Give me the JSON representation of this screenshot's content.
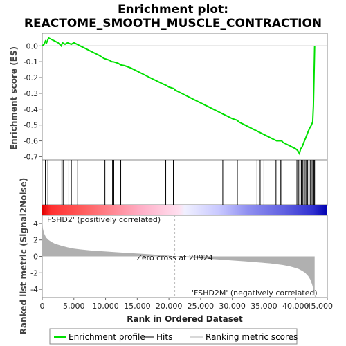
{
  "chart_data": {
    "type": "line",
    "title_line1": "Enrichment plot:",
    "title_line2": "REACTOME_SMOOTH_MUSCLE_CONTRACTION",
    "es_ylabel": "Enrichment score (ES)",
    "metric_ylabel": "Ranked list metric (Signal2Noise)",
    "xlabel": "Rank in Ordered Dataset",
    "xlim": [
      0,
      45000
    ],
    "x_ticks": [
      0,
      5000,
      10000,
      15000,
      20000,
      25000,
      30000,
      35000,
      40000,
      45000
    ],
    "x_tick_labels": [
      "0",
      "5,000",
      "10,000",
      "15,000",
      "20,000",
      "25,000",
      "30,000",
      "35,000",
      "40,000",
      "45,000"
    ],
    "es_ylim": [
      -0.72,
      0.08
    ],
    "es_ticks": [
      0.0,
      -0.1,
      -0.2,
      -0.3,
      -0.4,
      -0.5,
      -0.6,
      -0.7
    ],
    "es_tick_labels": [
      "0.0",
      "-0.1",
      "-0.2",
      "-0.3",
      "-0.4",
      "-0.5",
      "-0.6",
      "-0.7"
    ],
    "metric_ylim": [
      -5,
      5
    ],
    "metric_ticks": [
      4,
      2,
      0,
      -2,
      -4
    ],
    "metric_tick_labels": [
      "4",
      "2",
      "0",
      "-2",
      "-4"
    ],
    "n_genes": 43000,
    "zero_cross": 20924,
    "zero_cross_label": "Zero cross at 20924",
    "pos_label": "'FSHD2' (positively correlated)",
    "neg_label": "'FSHD2M' (negatively correlated)",
    "enrichment_profile": {
      "name": "Enrichment profile",
      "x": [
        0,
        300,
        500,
        700,
        1000,
        1500,
        2000,
        2500,
        3000,
        3200,
        3400,
        3600,
        4000,
        4300,
        4600,
        5000,
        5500,
        6000,
        7000,
        8000,
        9000,
        9800,
        10200,
        10600,
        11000,
        11200,
        11600,
        12000,
        12400,
        13000,
        14000,
        15000,
        16000,
        17000,
        18000,
        19000,
        19600,
        20000,
        20800,
        21000,
        22000,
        23000,
        24000,
        25000,
        26000,
        27000,
        28000,
        28500,
        29000,
        30000,
        30800,
        31000,
        32000,
        33000,
        34000,
        34500,
        35000,
        35500,
        36000,
        36500,
        37000,
        37500,
        37800,
        38000,
        38500,
        39000,
        39500,
        40000,
        40300,
        40600,
        40800,
        41000,
        41200,
        41400,
        41600,
        41800,
        42000,
        42200,
        42500,
        42700,
        42800,
        42900,
        43000
      ],
      "y": [
        0.0,
        0.01,
        0.03,
        0.02,
        0.05,
        0.04,
        0.03,
        0.02,
        0.0,
        0.02,
        0.015,
        0.01,
        0.02,
        0.015,
        0.01,
        0.02,
        0.01,
        0.0,
        -0.02,
        -0.04,
        -0.06,
        -0.08,
        -0.085,
        -0.09,
        -0.1,
        -0.1,
        -0.105,
        -0.11,
        -0.12,
        -0.125,
        -0.14,
        -0.16,
        -0.18,
        -0.2,
        -0.22,
        -0.24,
        -0.25,
        -0.26,
        -0.27,
        -0.28,
        -0.3,
        -0.32,
        -0.34,
        -0.36,
        -0.38,
        -0.4,
        -0.42,
        -0.43,
        -0.44,
        -0.46,
        -0.47,
        -0.48,
        -0.5,
        -0.52,
        -0.54,
        -0.55,
        -0.56,
        -0.57,
        -0.58,
        -0.59,
        -0.6,
        -0.6,
        -0.6,
        -0.61,
        -0.62,
        -0.63,
        -0.64,
        -0.65,
        -0.66,
        -0.68,
        -0.65,
        -0.64,
        -0.62,
        -0.6,
        -0.58,
        -0.56,
        -0.54,
        -0.52,
        -0.5,
        -0.48,
        -0.38,
        -0.2,
        0.0
      ]
    },
    "hits": {
      "name": "Hits",
      "x": [
        500,
        900,
        3100,
        3300,
        4200,
        4600,
        5600,
        9900,
        11100,
        11300,
        12400,
        19500,
        20700,
        28500,
        30800,
        33900,
        34400,
        35000,
        36900,
        37600,
        37800,
        40200,
        40500,
        40700,
        40900,
        41100,
        41300,
        41500,
        41700,
        41900,
        42100,
        42300,
        42600,
        42800,
        42900,
        43000
      ]
    },
    "ranking_metric": {
      "name": "Ranking metric scores",
      "x": [
        0,
        100,
        300,
        600,
        1000,
        1500,
        2000,
        3000,
        4000,
        5000,
        6000,
        8000,
        10000,
        12000,
        14000,
        16000,
        18000,
        20000,
        20924,
        22000,
        24000,
        26000,
        28000,
        30000,
        32000,
        34000,
        36000,
        38000,
        39000,
        40000,
        40500,
        41000,
        41500,
        42000,
        42300,
        42600,
        42800,
        43000
      ],
      "y": [
        4.8,
        3.4,
        2.8,
        2.3,
        2.0,
        1.75,
        1.55,
        1.3,
        1.1,
        0.95,
        0.85,
        0.7,
        0.6,
        0.5,
        0.4,
        0.3,
        0.2,
        0.08,
        0.0,
        -0.08,
        -0.18,
        -0.28,
        -0.38,
        -0.5,
        -0.6,
        -0.72,
        -0.85,
        -1.05,
        -1.2,
        -1.4,
        -1.55,
        -1.75,
        -2.0,
        -2.4,
        -2.8,
        -3.4,
        -4.0,
        -4.9
      ]
    },
    "legend": [
      "Enrichment profile",
      "Hits",
      "Ranking metric scores"
    ],
    "legend_position": "bottom"
  },
  "colors": {
    "profile": "#00e000",
    "hits": "#000000",
    "metric": "#b0b0b0",
    "pos_label": "#e03030",
    "neg_label": "#3030d0"
  }
}
